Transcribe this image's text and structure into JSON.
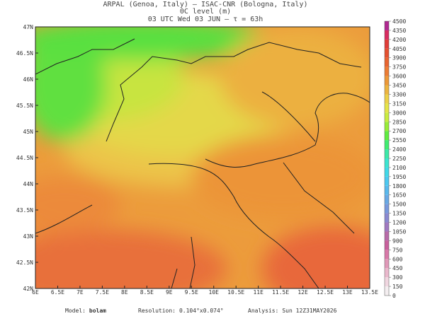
{
  "header": {
    "line1": "ARPAL (Genoa, Italy)  –  ISAC-CNR (Bologna, Italy)",
    "line2": "0C level (m)",
    "line3": "03 UTC Wed 03 JUN  –  τ = 63h"
  },
  "map": {
    "lonlim": [
      6,
      13.5
    ],
    "latlim": [
      42,
      47
    ],
    "lon_ticks": [
      {
        "value": 6,
        "label": "6E"
      },
      {
        "value": 6.5,
        "label": "6.5E"
      },
      {
        "value": 7,
        "label": "7E"
      },
      {
        "value": 7.5,
        "label": "7.5E"
      },
      {
        "value": 8,
        "label": "8E"
      },
      {
        "value": 8.5,
        "label": "8.5E"
      },
      {
        "value": 9,
        "label": "9E"
      },
      {
        "value": 9.5,
        "label": "9.5E"
      },
      {
        "value": 10,
        "label": "10E"
      },
      {
        "value": 10.5,
        "label": "10.5E"
      },
      {
        "value": 11,
        "label": "11E"
      },
      {
        "value": 11.5,
        "label": "11.5E"
      },
      {
        "value": 12,
        "label": "12E"
      },
      {
        "value": 12.5,
        "label": "12.5E"
      },
      {
        "value": 13,
        "label": "13E"
      },
      {
        "value": 13.5,
        "label": "13.5E"
      }
    ],
    "lat_ticks": [
      {
        "value": 42,
        "label": "42N"
      },
      {
        "value": 42.5,
        "label": "42.5N"
      },
      {
        "value": 43,
        "label": "43N"
      },
      {
        "value": 43.5,
        "label": "43.5N"
      },
      {
        "value": 44,
        "label": "44N"
      },
      {
        "value": 44.5,
        "label": "44.5N"
      },
      {
        "value": 45,
        "label": "45N"
      },
      {
        "value": 45.5,
        "label": "45.5N"
      },
      {
        "value": 46,
        "label": "46N"
      },
      {
        "value": 46.5,
        "label": "46.5N"
      },
      {
        "value": 47,
        "label": "47N"
      }
    ]
  },
  "colorbar": {
    "lim": [
      0,
      4500
    ],
    "ticks": [
      0,
      150,
      300,
      450,
      600,
      750,
      900,
      1050,
      1200,
      1350,
      1500,
      1650,
      1800,
      1950,
      2100,
      2250,
      2400,
      2550,
      2700,
      2850,
      3000,
      3150,
      3300,
      3450,
      3600,
      3750,
      3900,
      4050,
      4200,
      4350,
      4500
    ],
    "colors": [
      "#f4eef0",
      "#f0d6e0",
      "#eab8cc",
      "#e098b8",
      "#d878a8",
      "#c8609c",
      "#b86aa8",
      "#a078c0",
      "#8a88d0",
      "#7898dc",
      "#68a8e4",
      "#58b8ec",
      "#4cc8f0",
      "#40d8e8",
      "#3ce4d0",
      "#3ce8a8",
      "#40ec70",
      "#60ec40",
      "#98ec38",
      "#c8ec40",
      "#e4e448",
      "#ecd048",
      "#ecb440",
      "#ec9838",
      "#ec7c34",
      "#e86430",
      "#e45030",
      "#e03c38",
      "#d82c60",
      "#b02890"
    ]
  },
  "footer": {
    "model_label": "Model:",
    "model": "bolam",
    "res_label": "Resolution:",
    "res": "0.104°x0.074°",
    "analysis_label": "Analysis:",
    "analysis": "Sun 12Z31MAY2026"
  }
}
